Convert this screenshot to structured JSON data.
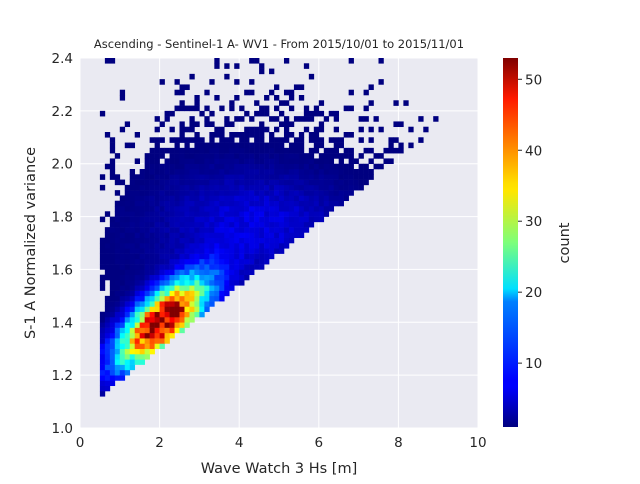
{
  "chart_data": {
    "type": "heatmap",
    "title": "Ascending - Sentinel-1 A- WV1 - From 2015/10/01 to 2015/11/01",
    "xlabel": "Wave Watch 3 Hs [m]",
    "ylabel": "S-1 A Normalized variance",
    "xlim": [
      0,
      10
    ],
    "ylim": [
      1.0,
      2.4
    ],
    "xticks": [
      0,
      2,
      4,
      6,
      8,
      10
    ],
    "yticks": [
      1.0,
      1.2,
      1.4,
      1.6,
      1.8,
      2.0,
      2.2,
      2.4
    ],
    "grid": true,
    "bin_width_x": 0.125,
    "bin_width_y": 0.02,
    "colorbar": {
      "label": "count",
      "min": 1,
      "max": 53,
      "ticks": [
        10,
        20,
        30,
        40,
        50
      ],
      "colormap": "jet"
    },
    "density_model": {
      "peak_x": 2.05,
      "peak_y": 1.4,
      "peak_count": 53
    }
  }
}
